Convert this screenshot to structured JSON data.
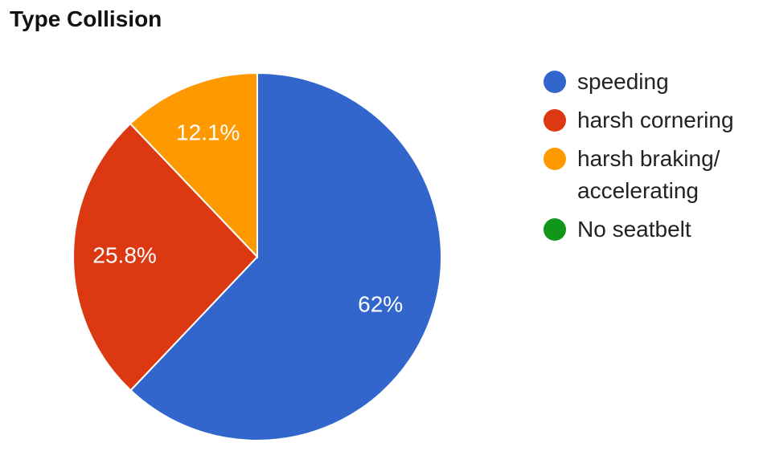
{
  "chart_data": {
    "type": "pie",
    "title": "Type Collision",
    "categories": [
      "speeding",
      "harsh cornering",
      "harsh braking/ accelerating",
      "No seatbelt"
    ],
    "values": [
      62,
      25.8,
      12.1,
      0
    ],
    "value_labels": [
      "62%",
      "25.8%",
      "12.1%",
      null
    ],
    "colors": [
      "#3366cc",
      "#dc3912",
      "#ff9900",
      "#109618"
    ],
    "legend": "right"
  }
}
